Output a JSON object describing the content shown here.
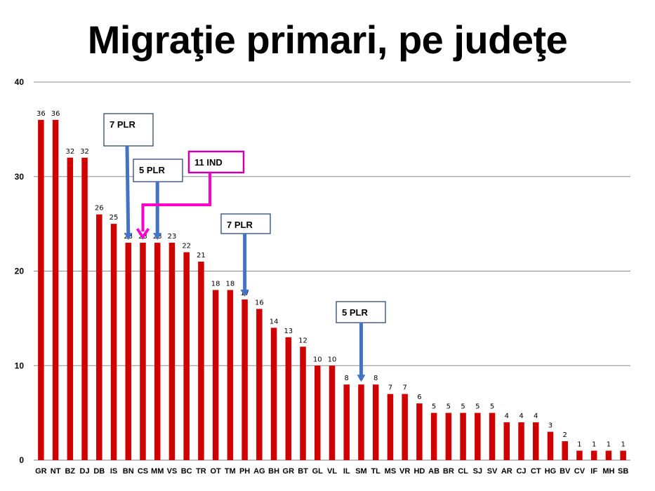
{
  "chart_data": {
    "type": "bar",
    "title": "Migraţie primari, pe judeţe",
    "xlabel": "",
    "ylabel": "",
    "ylim": [
      0,
      40
    ],
    "yticks": [
      0,
      10,
      20,
      30,
      40
    ],
    "grid": true,
    "bar_color": "#d00000",
    "categories": [
      "GR",
      "NT",
      "BZ",
      "DJ",
      "DB",
      "IS",
      "BN",
      "CS",
      "MM",
      "VS",
      "BC",
      "TR",
      "OT",
      "TM",
      "PH",
      "AG",
      "BH",
      "GR",
      "BT",
      "GL",
      "VL",
      "IL",
      "SM",
      "TL",
      "MS",
      "VR",
      "HD",
      "AB",
      "BR",
      "CL",
      "SJ",
      "SV",
      "AR",
      "CJ",
      "CT",
      "HG",
      "BV",
      "CV",
      "IF",
      "MH",
      "SB"
    ],
    "values": [
      36,
      36,
      32,
      32,
      26,
      25,
      23,
      23,
      23,
      23,
      22,
      21,
      18,
      18,
      17,
      16,
      14,
      13,
      12,
      10,
      10,
      8,
      8,
      8,
      7,
      7,
      6,
      5,
      5,
      5,
      5,
      5,
      4,
      4,
      4,
      3,
      2,
      1,
      1,
      1,
      1
    ],
    "annotations": [
      {
        "text": "7 PLR",
        "target": "BN",
        "color": "#4472c4",
        "border": "#1f3864"
      },
      {
        "text": "5 PLR",
        "target": "MM",
        "color": "#4472c4",
        "border": "#1f3864"
      },
      {
        "text": "11 IND",
        "target": "CS",
        "color": "#ff00cc",
        "border": "#cc00aa"
      },
      {
        "text": "7 PLR",
        "target": "PH",
        "color": "#4472c4",
        "border": "#1f3864"
      },
      {
        "text": "5 PLR",
        "target": "SM",
        "color": "#4472c4",
        "border": "#1f3864"
      }
    ]
  }
}
